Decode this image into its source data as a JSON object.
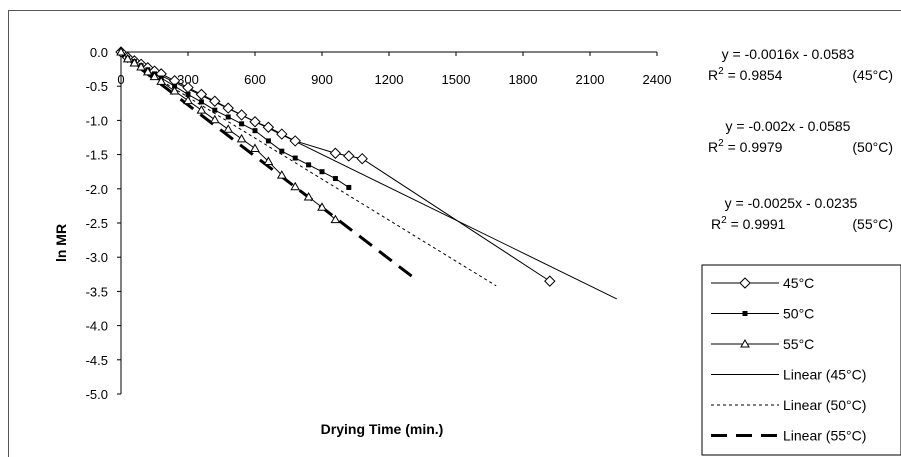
{
  "chart_data": {
    "type": "scatter",
    "xlabel": "Drying Time (min.)",
    "ylabel": "ln MR",
    "xlim": [
      0,
      2400
    ],
    "ylim": [
      -5.0,
      0.0
    ],
    "x_ticks": [
      0,
      300,
      600,
      900,
      1200,
      1500,
      1800,
      2100,
      2400
    ],
    "y_ticks": [
      0.0,
      -0.5,
      -1.0,
      -1.5,
      -2.0,
      -2.5,
      -3.0,
      -3.5,
      -4.0,
      -4.5,
      -5.0
    ],
    "x_tick_labels": [
      "0",
      "300",
      "600",
      "900",
      "1200",
      "1500",
      "1800",
      "2100",
      "2400"
    ],
    "y_tick_labels": [
      "0.0",
      "-0.5",
      "-1.0",
      "-1.5",
      "-2.0",
      "-2.5",
      "-3.0",
      "-3.5",
      "-4.0",
      "-4.5",
      "-5.0"
    ],
    "grid": false,
    "legend_position": "bottom-right",
    "series": [
      {
        "name": "45°C",
        "marker": "diamond-open",
        "color": "#000000",
        "x": [
          0,
          30,
          60,
          90,
          120,
          150,
          180,
          240,
          300,
          360,
          420,
          480,
          540,
          600,
          660,
          720,
          780,
          960,
          1020,
          1080,
          1920
        ],
        "y": [
          0,
          -0.08,
          -0.13,
          -0.18,
          -0.23,
          -0.28,
          -0.32,
          -0.42,
          -0.52,
          -0.62,
          -0.72,
          -0.82,
          -0.92,
          -1.02,
          -1.1,
          -1.2,
          -1.3,
          -1.48,
          -1.52,
          -1.56,
          -3.35
        ]
      },
      {
        "name": "50°C",
        "marker": "square-filled",
        "color": "#000000",
        "x": [
          0,
          30,
          60,
          90,
          120,
          150,
          180,
          240,
          300,
          360,
          420,
          480,
          540,
          600,
          660,
          720,
          780,
          840,
          900,
          960,
          1020
        ],
        "y": [
          0,
          -0.09,
          -0.14,
          -0.2,
          -0.26,
          -0.32,
          -0.38,
          -0.5,
          -0.62,
          -0.73,
          -0.85,
          -0.95,
          -1.05,
          -1.15,
          -1.3,
          -1.45,
          -1.55,
          -1.65,
          -1.75,
          -1.85,
          -1.98
        ]
      },
      {
        "name": "55°C",
        "marker": "triangle-open",
        "color": "#000000",
        "x": [
          0,
          30,
          60,
          90,
          120,
          150,
          180,
          240,
          300,
          360,
          420,
          480,
          540,
          600,
          660,
          720,
          780,
          840,
          900,
          960
        ],
        "y": [
          0,
          -0.1,
          -0.16,
          -0.22,
          -0.29,
          -0.36,
          -0.43,
          -0.57,
          -0.71,
          -0.85,
          -0.99,
          -1.13,
          -1.27,
          -1.41,
          -1.6,
          -1.8,
          -1.97,
          -2.12,
          -2.27,
          -2.45
        ]
      }
    ],
    "trendlines": [
      {
        "name": "Linear (45°C)",
        "style": "solid",
        "slope": -0.0016,
        "intercept": -0.0583,
        "x_range": [
          0,
          2220
        ]
      },
      {
        "name": "Linear (50°C)",
        "style": "dotted",
        "slope": -0.002,
        "intercept": -0.0585,
        "x_range": [
          0,
          1680
        ]
      },
      {
        "name": "Linear (55°C)",
        "style": "long-dash",
        "slope": -0.0025,
        "intercept": -0.0235,
        "x_range": [
          0,
          1320
        ]
      }
    ],
    "equations": [
      {
        "eq": "y = -0.0016x - 0.0583",
        "r2_prefix": "R",
        "r2_sup": "2",
        "r2_value": " = 0.9854",
        "temp": "(45°C)"
      },
      {
        "eq": "y = -0.002x - 0.0585",
        "r2_prefix": "R",
        "r2_sup": "2",
        "r2_value": " = 0.9979",
        "temp": "(50°C)"
      },
      {
        "eq": "y = -0.0025x - 0.0235",
        "r2_prefix": "R",
        "r2_sup": "2",
        "r2_value": " = 0.9991",
        "temp": "(55°C)"
      }
    ],
    "legend": [
      {
        "label": "45°C",
        "kind": "series-diamond"
      },
      {
        "label": "50°C",
        "kind": "series-square"
      },
      {
        "label": "55°C",
        "kind": "series-triangle"
      },
      {
        "label": "Linear (45°C)",
        "kind": "line-solid"
      },
      {
        "label": "Linear (50°C)",
        "kind": "line-dotted"
      },
      {
        "label": "Linear (55°C)",
        "kind": "line-dash"
      }
    ]
  }
}
